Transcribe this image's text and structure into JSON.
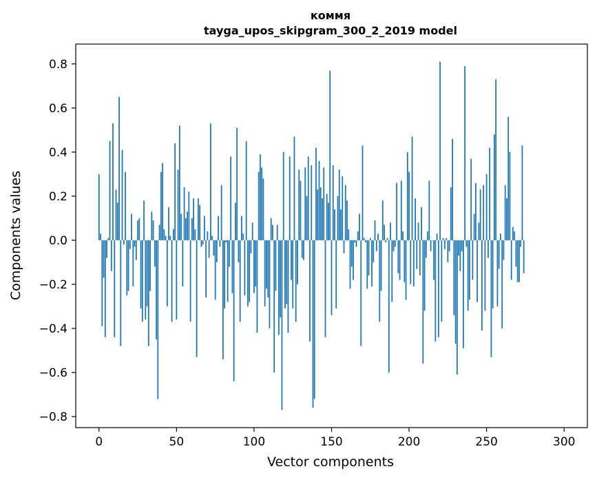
{
  "chart_data": {
    "type": "bar",
    "title_line1": "коммя",
    "title_line2": "tayga_upos_skipgram_300_2_2019 model",
    "xlabel": "Vector components",
    "ylabel": "Components values",
    "xlim": [
      -15,
      315
    ],
    "ylim": [
      -0.85,
      0.89
    ],
    "x_ticks": [
      0,
      50,
      100,
      150,
      200,
      250,
      300
    ],
    "y_ticks": [
      -0.8,
      -0.6,
      -0.4,
      -0.2,
      0.0,
      0.2,
      0.4,
      0.6,
      0.8
    ],
    "x_tick_labels": [
      "0",
      "50",
      "100",
      "150",
      "200",
      "250",
      "300"
    ],
    "y_tick_labels": [
      "−0.8",
      "−0.6",
      "−0.4",
      "−0.2",
      "0.0",
      "0.2",
      "0.4",
      "0.6",
      "0.8"
    ],
    "bar_color": "#1f77b4",
    "grid": false,
    "values": [
      0.3,
      0.03,
      -0.39,
      -0.17,
      -0.44,
      -0.08,
      0.01,
      0.45,
      -0.14,
      0.53,
      -0.44,
      0.23,
      0.17,
      0.65,
      -0.48,
      0.41,
      -0.02,
      0.31,
      -0.25,
      -0.23,
      -0.04,
      0.12,
      -0.21,
      -0.03,
      -0.09,
      0.09,
      0.1,
      -0.31,
      -0.37,
      0.18,
      -0.36,
      -0.3,
      -0.48,
      -0.23,
      0.13,
      0.09,
      -0.12,
      -0.45,
      -0.72,
      0.07,
      0.31,
      0.35,
      0.05,
      0.02,
      -0.3,
      0.15,
      0.02,
      -0.37,
      0.05,
      0.44,
      -0.36,
      0.32,
      0.52,
      0.12,
      -0.21,
      0.24,
      0.1,
      0.13,
      0.22,
      -0.37,
      0.1,
      0.19,
      0.05,
      -0.53,
      0.19,
      0.16,
      -0.03,
      -0.02,
      0.11,
      -0.26,
      0.04,
      -0.08,
      0.53,
      0.02,
      -0.07,
      -0.27,
      -0.1,
      0.11,
      -0.03,
      0.25,
      -0.54,
      -0.31,
      -0.01,
      -0.28,
      -0.12,
      0.38,
      -0.24,
      -0.64,
      0.17,
      0.51,
      -0.1,
      -0.37,
      0.11,
      0.03,
      -0.25,
      0.45,
      -0.3,
      -0.28,
      -0.06,
      0.08,
      -0.24,
      -0.21,
      -0.42,
      0.31,
      0.39,
      0.33,
      0.28,
      -0.3,
      -0.22,
      -0.26,
      -0.4,
      0.1,
      0.07,
      -0.6,
      -0.23,
      0.07,
      -0.43,
      -0.35,
      -0.77,
      0.4,
      -0.31,
      -0.29,
      -0.42,
      0.38,
      -0.18,
      -0.31,
      0.47,
      -0.37,
      -0.2,
      0.32,
      0.27,
      -0.08,
      -0.09,
      0.33,
      0.2,
      0.38,
      -0.46,
      0.34,
      -0.76,
      -0.72,
      0.42,
      0.23,
      0.36,
      0.24,
      0.19,
      0.33,
      -0.44,
      0.21,
      0.17,
      0.77,
      -0.34,
      0.34,
      0.14,
      -0.31,
      0.2,
      0.32,
      0.14,
      0.29,
      -0.06,
      0.25,
      0.18,
      0.05,
      -0.22,
      -0.12,
      -0.18,
      -0.01,
      -0.03,
      0.04,
      0.12,
      -0.48,
      0.43,
      0.01,
      -0.01,
      -0.22,
      -0.16,
      0.01,
      -0.21,
      -0.1,
      0.09,
      -0.05,
      0.03,
      -0.37,
      -0.23,
      0.18,
      0.07,
      -0.01,
      0.01,
      -0.6,
      0.08,
      -0.28,
      -0.05,
      -0.03,
      0.26,
      -0.15,
      -0.18,
      0.27,
      0.04,
      -0.19,
      -0.27,
      0.4,
      0.31,
      -0.2,
      0.47,
      -0.21,
      0.19,
      -0.13,
      0.08,
      -0.16,
      0.15,
      -0.56,
      -0.32,
      -0.08,
      0.04,
      0.27,
      -0.05,
      0.0,
      -0.18,
      -0.46,
      0.03,
      -0.44,
      0.81,
      -0.37,
      0.01,
      -0.04,
      0.01,
      -0.1,
      -0.05,
      0.24,
      0.46,
      -0.34,
      -0.47,
      -0.61,
      -0.07,
      -0.14,
      -0.05,
      -0.49,
      0.79,
      -0.03,
      -0.32,
      -0.27,
      0.37,
      -0.18,
      0.12,
      0.26,
      -0.28,
      0.08,
      0.23,
      -0.41,
      0.25,
      -0.32,
      0.3,
      -0.08,
      0.42,
      -0.53,
      -0.31,
      0.48,
      0.73,
      -0.3,
      -0.13,
      0.03,
      -0.4,
      -0.09,
      0.25,
      0.19,
      0.56,
      0.4,
      -0.18,
      0.06,
      0.04,
      -0.12,
      -0.19,
      -0.19,
      -0.03,
      0.43,
      -0.15
    ]
  }
}
